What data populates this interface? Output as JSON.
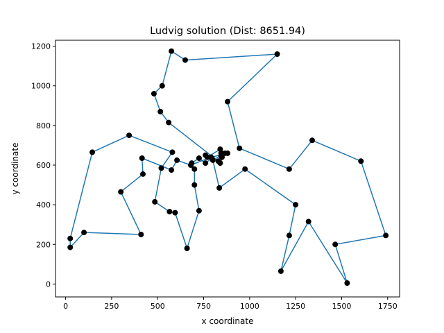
{
  "chart_data": {
    "type": "line",
    "title": "Ludvig solution (Dist: 8651.94)",
    "xlabel": "x coordinate",
    "ylabel": "y coordinate",
    "xlim": [
      -55,
      1815
    ],
    "ylim": [
      -65,
      1230
    ],
    "xticks": [
      0,
      250,
      500,
      750,
      1000,
      1250,
      1500,
      1750
    ],
    "yticks": [
      0,
      200,
      400,
      600,
      800,
      1000,
      1200
    ],
    "grid": false,
    "legend": "none",
    "line_color": "#1f77b4",
    "point_color": "#000000",
    "route": [
      [
        1150,
        1160
      ],
      [
        880,
        920
      ],
      [
        945,
        685
      ],
      [
        1215,
        580
      ],
      [
        1340,
        725
      ],
      [
        1605,
        620
      ],
      [
        1740,
        245
      ],
      [
        1465,
        200
      ],
      [
        1530,
        5
      ],
      [
        1320,
        315
      ],
      [
        1170,
        65
      ],
      [
        1215,
        245
      ],
      [
        1250,
        400
      ],
      [
        975,
        580
      ],
      [
        835,
        485
      ],
      [
        800,
        625
      ],
      [
        865,
        660
      ],
      [
        840,
        610
      ],
      [
        850,
        640
      ],
      [
        840,
        680
      ],
      [
        770,
        640
      ],
      [
        760,
        650
      ],
      [
        795,
        635
      ],
      [
        760,
        610
      ],
      [
        725,
        635
      ],
      [
        685,
        610
      ],
      [
        700,
        580
      ],
      [
        700,
        500
      ],
      [
        725,
        370
      ],
      [
        660,
        180
      ],
      [
        595,
        360
      ],
      [
        565,
        365
      ],
      [
        485,
        415
      ],
      [
        520,
        585
      ],
      [
        580,
        665
      ],
      [
        345,
        750
      ],
      [
        145,
        665
      ],
      [
        25,
        230
      ],
      [
        25,
        185
      ],
      [
        100,
        260
      ],
      [
        410,
        250
      ],
      [
        300,
        465
      ],
      [
        420,
        555
      ],
      [
        415,
        635
      ],
      [
        575,
        575
      ],
      [
        605,
        625
      ],
      [
        680,
        600
      ],
      [
        790,
        640
      ],
      [
        880,
        660
      ],
      [
        845,
        660
      ],
      [
        845,
        645
      ],
      [
        830,
        620
      ],
      [
        560,
        815
      ],
      [
        515,
        870
      ],
      [
        480,
        960
      ],
      [
        525,
        1000
      ],
      [
        575,
        1175
      ],
      [
        650,
        1130
      ],
      [
        1150,
        1160
      ]
    ]
  }
}
